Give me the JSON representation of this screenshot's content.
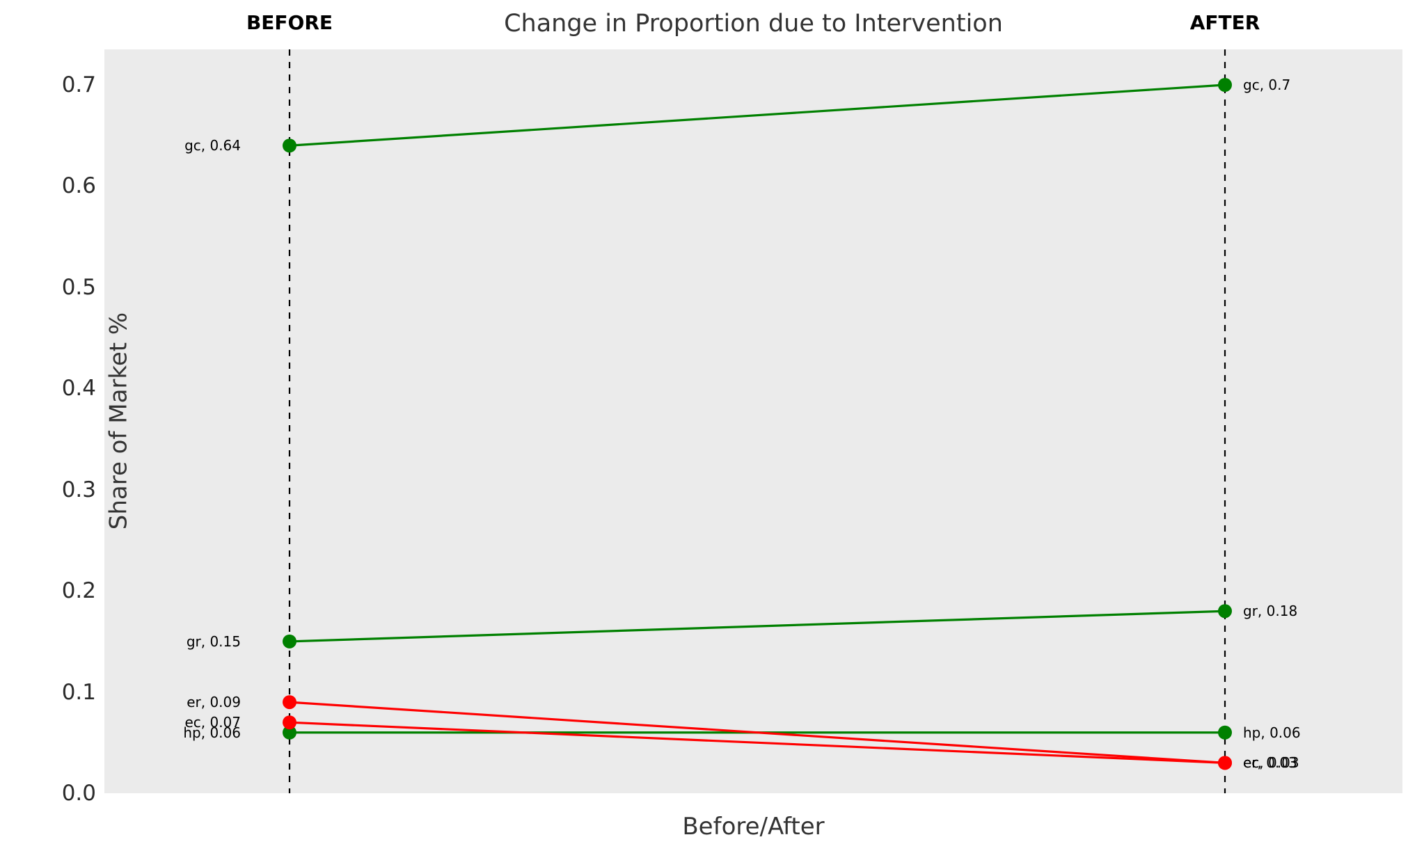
{
  "chart_data": {
    "type": "line",
    "variant": "slopegraph",
    "title": "Change in Proportion due to Intervention",
    "xlabel": "Before/After",
    "ylabel": "Share of Market %",
    "column_headers": {
      "before": "BEFORE",
      "after": "AFTER"
    },
    "ytick_labels": [
      "0.0",
      "0.1",
      "0.2",
      "0.3",
      "0.4",
      "0.5",
      "0.6",
      "0.7"
    ],
    "ylim": [
      0.0,
      0.735
    ],
    "grid": false,
    "legend": "none",
    "plot_background": "#ebebeb",
    "colors": {
      "increase_or_flat": "#008000",
      "decrease": "#ff0000"
    },
    "series": [
      {
        "name": "gc",
        "before": 0.64,
        "after": 0.7,
        "before_label": "gc, 0.64",
        "after_label": "gc, 0.7",
        "color": "#008000",
        "trend": "increase"
      },
      {
        "name": "gr",
        "before": 0.15,
        "after": 0.18,
        "before_label": "gr, 0.15",
        "after_label": "gr, 0.18",
        "color": "#008000",
        "trend": "increase"
      },
      {
        "name": "er",
        "before": 0.09,
        "after": 0.03,
        "before_label": "er, 0.09",
        "after_label": "er, 0.03",
        "color": "#ff0000",
        "trend": "decrease"
      },
      {
        "name": "ec",
        "before": 0.07,
        "after": 0.03,
        "before_label": "ec, 0.07",
        "after_label": "ec, 0.03",
        "color": "#ff0000",
        "trend": "decrease"
      },
      {
        "name": "hp",
        "before": 0.06,
        "after": 0.06,
        "before_label": "hp, 0.06",
        "after_label": "hp, 0.06",
        "color": "#008000",
        "trend": "flat"
      }
    ]
  }
}
